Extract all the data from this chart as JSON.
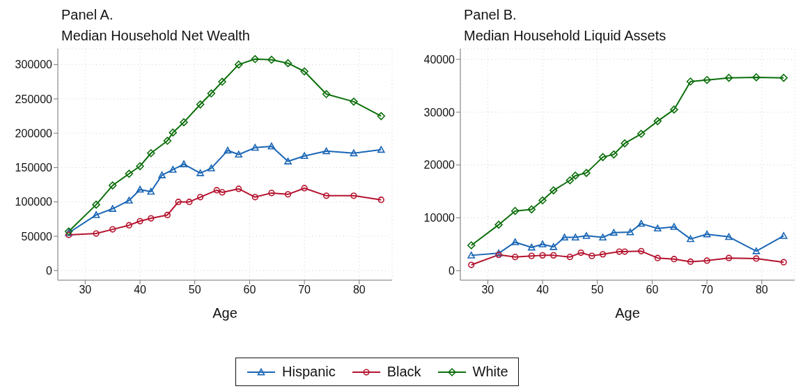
{
  "chart_data": [
    {
      "type": "line",
      "title": "Panel A.",
      "subtitle": "Median Household Net Wealth",
      "xlabel": "Age",
      "xlim": [
        25,
        86
      ],
      "xticks": [
        30,
        40,
        50,
        60,
        70,
        80
      ],
      "ylim": [
        -14000,
        323000
      ],
      "yticks": [
        0,
        50000,
        100000,
        150000,
        200000,
        250000,
        300000
      ],
      "grid": true,
      "legend": "bottom",
      "series": [
        {
          "name": "Hispanic",
          "color": "#1a66b5",
          "marker": "triangle",
          "x": [
            27,
            32,
            35,
            38,
            40,
            42,
            44,
            46,
            48,
            51,
            53,
            56,
            58,
            61,
            64,
            67,
            70,
            74,
            79,
            84
          ],
          "values": [
            55000,
            81000,
            90000,
            102000,
            118000,
            115000,
            139000,
            147000,
            155000,
            142000,
            149000,
            175000,
            169000,
            179000,
            181000,
            159000,
            167000,
            174000,
            171000,
            176000
          ]
        },
        {
          "name": "Black",
          "color": "#b5122e",
          "marker": "circle",
          "x": [
            27,
            32,
            35,
            38,
            40,
            42,
            45,
            47,
            49,
            51,
            54,
            55,
            58,
            61,
            64,
            67,
            70,
            74,
            79,
            84
          ],
          "values": [
            52000,
            54000,
            60000,
            66000,
            72000,
            76000,
            81000,
            100000,
            100000,
            107000,
            117000,
            114000,
            119000,
            107000,
            113000,
            111000,
            120000,
            109000,
            109000,
            103000
          ]
        },
        {
          "name": "White",
          "color": "#0b6e0b",
          "marker": "diamond",
          "x": [
            27,
            32,
            35,
            38,
            40,
            42,
            45,
            46,
            48,
            51,
            53,
            55,
            58,
            61,
            64,
            67,
            70,
            74,
            79,
            84
          ],
          "values": [
            57000,
            96000,
            124000,
            141000,
            152000,
            171000,
            189000,
            201000,
            216000,
            242000,
            258000,
            275000,
            300000,
            308000,
            307000,
            302000,
            290000,
            257000,
            246000,
            225000
          ]
        }
      ]
    },
    {
      "type": "line",
      "title": "Panel B.",
      "subtitle": "Median Household Liquid Assets",
      "xlabel": "Age",
      "xlim": [
        25,
        86
      ],
      "xticks": [
        30,
        40,
        50,
        60,
        70,
        80
      ],
      "ylim": [
        -1800,
        42000
      ],
      "yticks": [
        0,
        10000,
        20000,
        30000,
        40000
      ],
      "grid": true,
      "series": [
        {
          "color": "#1a66b5",
          "marker": "triangle",
          "x": [
            27,
            32,
            35,
            38,
            40,
            42,
            44,
            46,
            48,
            51,
            53,
            56,
            58,
            61,
            64,
            67,
            70,
            74,
            79,
            84
          ],
          "values": [
            2900,
            3300,
            5400,
            4400,
            5000,
            4500,
            6300,
            6300,
            6600,
            6300,
            7200,
            7300,
            8900,
            8000,
            8300,
            6000,
            6900,
            6400,
            3700,
            6600
          ]
        },
        {
          "color": "#b5122e",
          "marker": "circle",
          "x": [
            27,
            32,
            35,
            38,
            40,
            42,
            45,
            47,
            49,
            51,
            54,
            55,
            58,
            61,
            64,
            67,
            70,
            74,
            79,
            84
          ],
          "values": [
            1100,
            3000,
            2600,
            2800,
            2900,
            2900,
            2600,
            3400,
            2800,
            3100,
            3600,
            3600,
            3700,
            2400,
            2200,
            1700,
            1900,
            2400,
            2300,
            1600
          ]
        },
        {
          "color": "#0b6e0b",
          "marker": "diamond",
          "x": [
            27,
            32,
            35,
            38,
            40,
            42,
            45,
            46,
            48,
            51,
            53,
            55,
            58,
            61,
            64,
            67,
            70,
            74,
            79,
            84
          ],
          "values": [
            4800,
            8700,
            11300,
            11600,
            13300,
            15200,
            17100,
            18000,
            18500,
            21500,
            22000,
            24100,
            25900,
            28300,
            30500,
            35800,
            36100,
            36500,
            36600,
            36500
          ]
        }
      ]
    }
  ]
}
